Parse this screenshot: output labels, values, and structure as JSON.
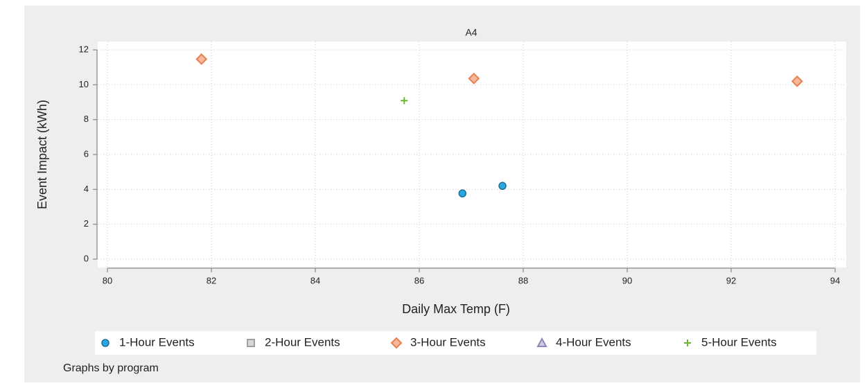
{
  "chart_data": {
    "type": "scatter",
    "title": "A4",
    "xlabel": "Daily Max Temp (F)",
    "ylabel": "Event Impact (kWh)",
    "note": "Graphs by program",
    "xlim": [
      80,
      94
    ],
    "xticks": [
      80,
      82,
      84,
      86,
      88,
      90,
      92,
      94
    ],
    "ylim": [
      0,
      12
    ],
    "yticks": [
      0,
      2,
      4,
      6,
      8,
      10,
      12
    ],
    "grid": true,
    "legend": "bottom",
    "series": [
      {
        "name": "1-Hour Events",
        "color": "#2aa8df",
        "marker": "circle",
        "x": [
          86.83,
          87.6
        ],
        "values": [
          3.77,
          4.2
        ]
      },
      {
        "name": "2-Hour Events",
        "color": "#a0a0a0",
        "marker": "square",
        "x": [],
        "values": []
      },
      {
        "name": "3-Hour Events",
        "color": "#e8804f",
        "marker": "diamond",
        "x": [
          81.81,
          87.05,
          93.27
        ],
        "values": [
          11.47,
          10.36,
          10.2
        ]
      },
      {
        "name": "4-Hour Events",
        "color": "#8c89b8",
        "marker": "triangle",
        "x": [],
        "values": []
      },
      {
        "name": "5-Hour Events",
        "color": "#6cb52d",
        "marker": "plus",
        "x": [
          85.71
        ],
        "values": [
          9.09
        ]
      }
    ]
  }
}
